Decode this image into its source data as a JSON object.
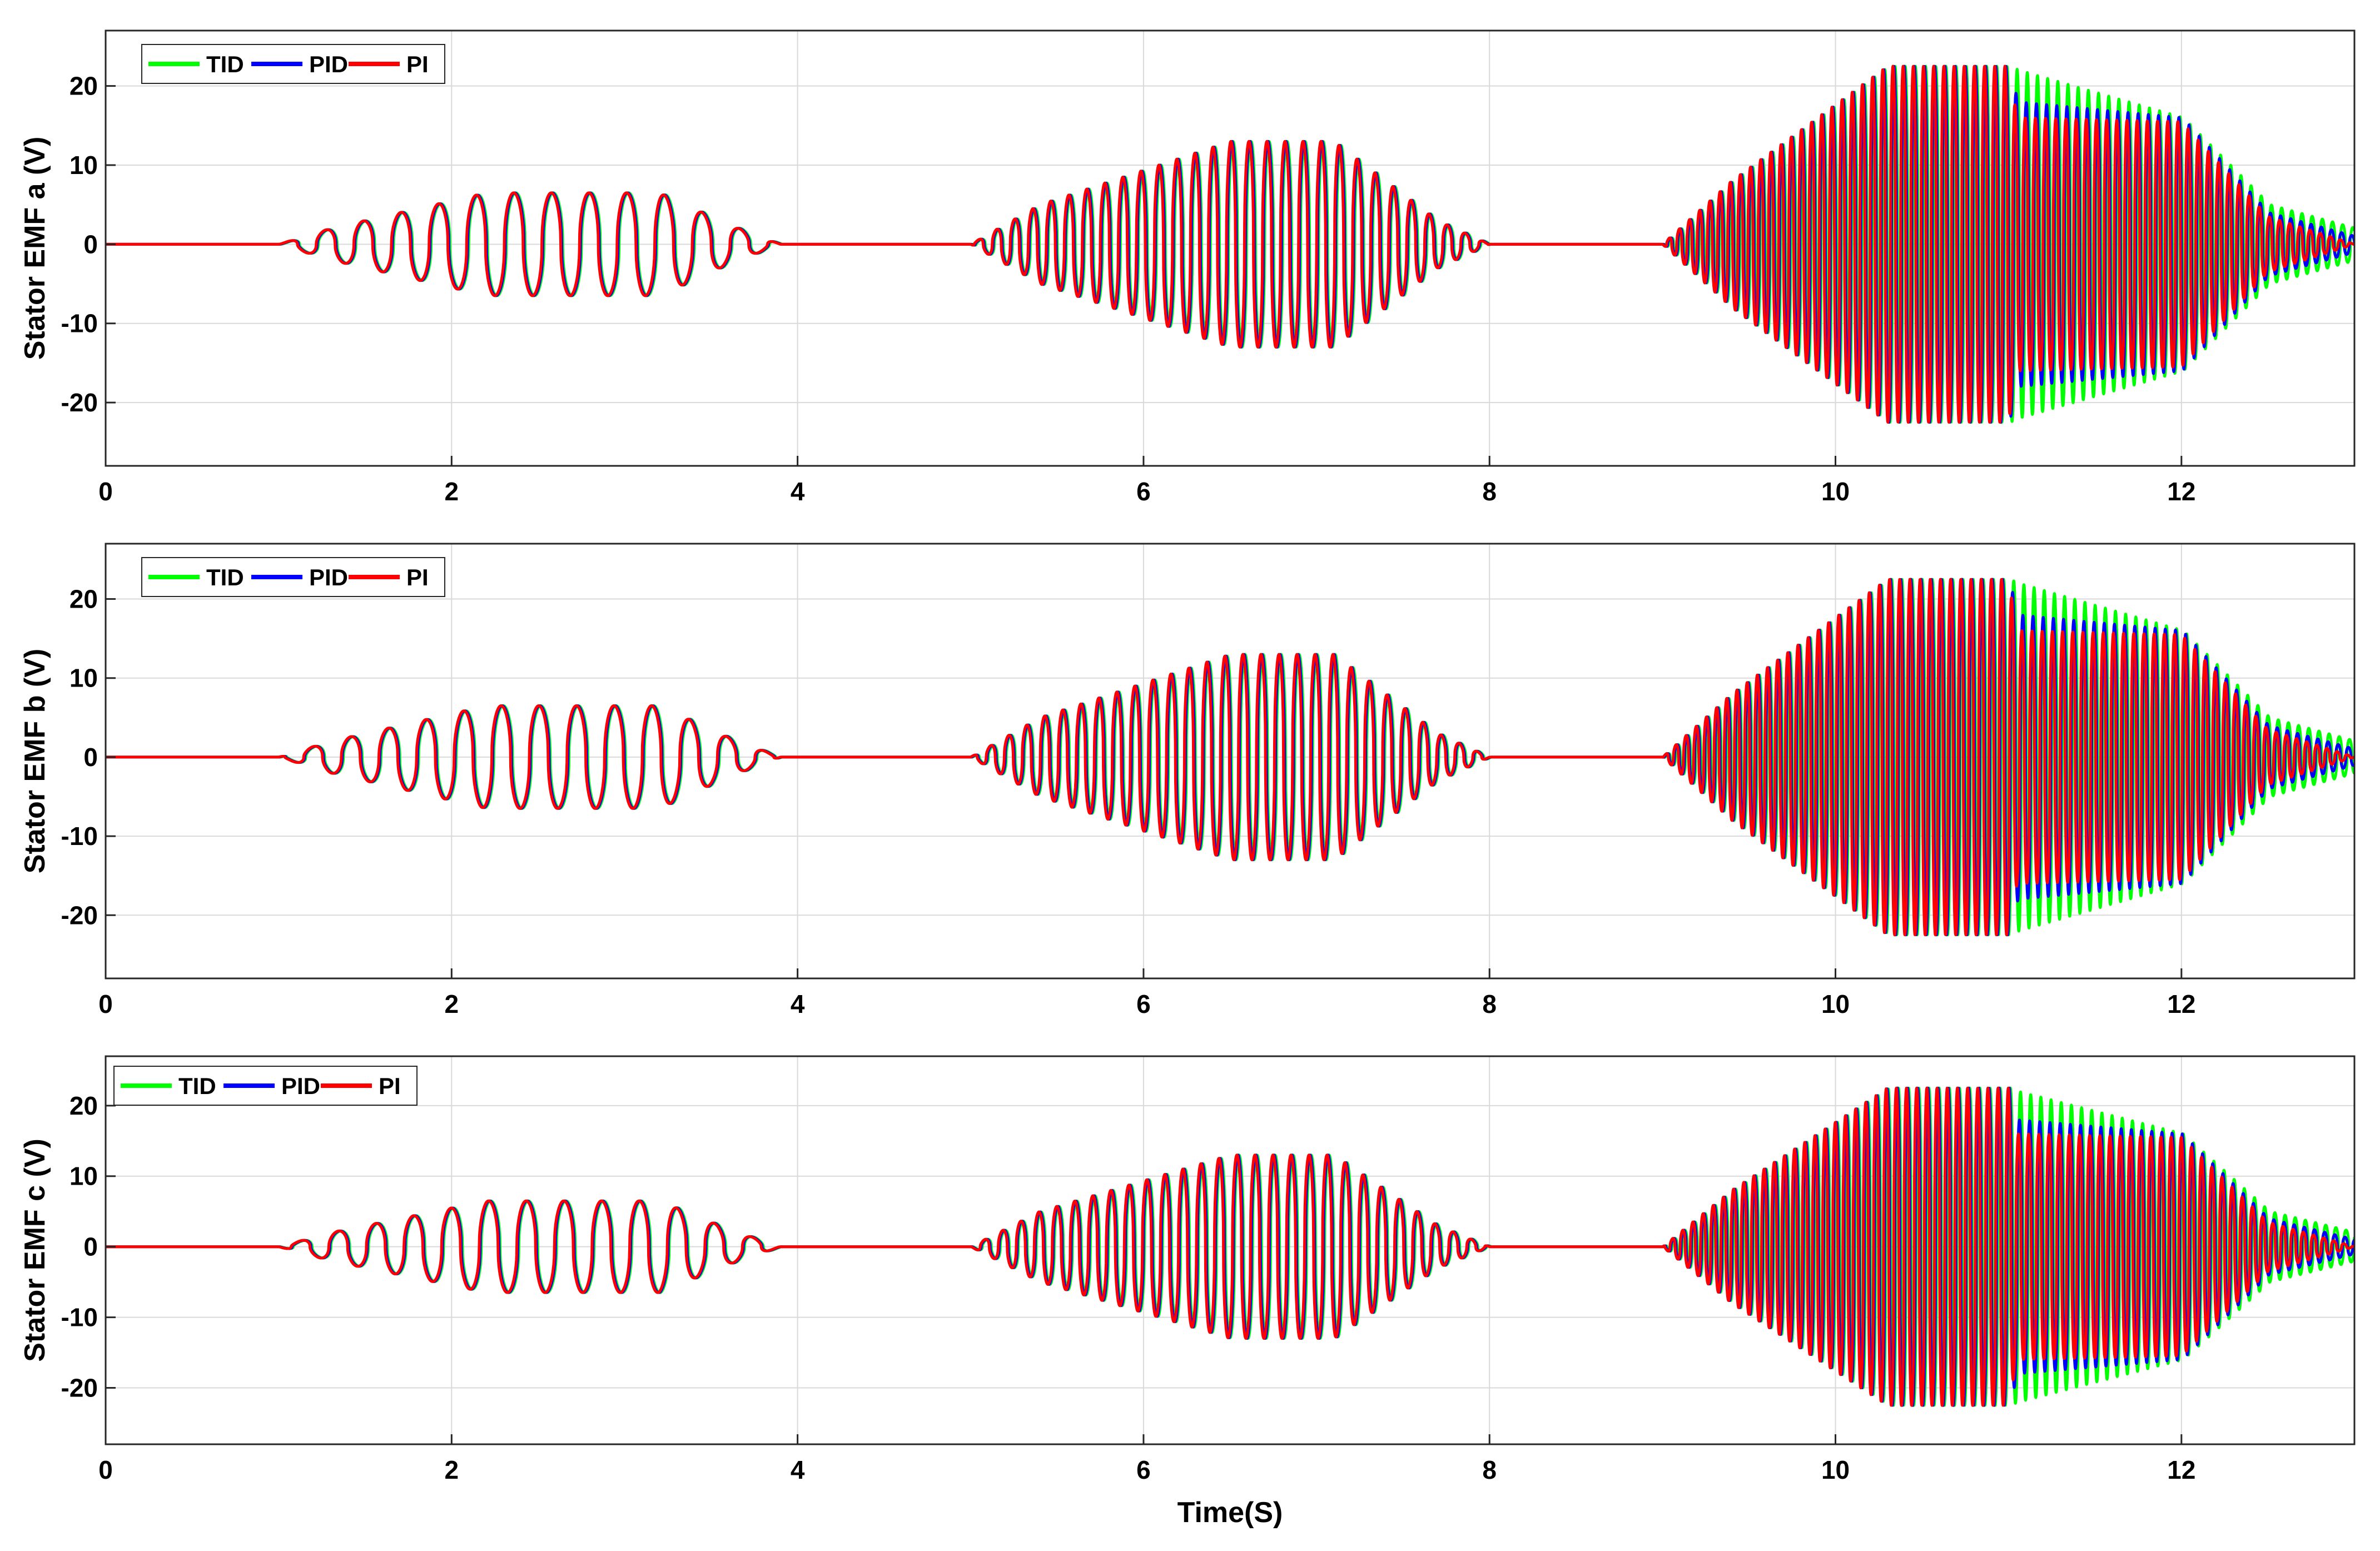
{
  "chart_data": [
    {
      "type": "line",
      "ylabel": "Stator EMF a (V)",
      "xlabel": "",
      "xlim": [
        0,
        13
      ],
      "ylim": [
        -28,
        27
      ],
      "x_ticks": [
        0,
        2,
        4,
        6,
        8,
        10,
        12
      ],
      "y_ticks": [
        -20,
        -10,
        0,
        10,
        20
      ],
      "grid": true,
      "legend_position": "top-left",
      "series": [
        {
          "name": "TID",
          "color": "#00ff00",
          "amplitude_envelope": [
            [
              0,
              0
            ],
            [
              1,
              0
            ],
            [
              1.3,
              2
            ],
            [
              2.2,
              6.5
            ],
            [
              3.2,
              6.5
            ],
            [
              3.6,
              2.5
            ],
            [
              3.9,
              0
            ],
            [
              5,
              0
            ],
            [
              5.4,
              5
            ],
            [
              6.5,
              13
            ],
            [
              7.1,
              13
            ],
            [
              7.7,
              3
            ],
            [
              8,
              0
            ],
            [
              9,
              0
            ],
            [
              9.4,
              8
            ],
            [
              10.3,
              22.5
            ],
            [
              11,
              22.5
            ],
            [
              11.05,
              22
            ],
            [
              12,
              16
            ],
            [
              12.5,
              5
            ],
            [
              13,
              2
            ]
          ]
        },
        {
          "name": "PID",
          "color": "#0000ff",
          "amplitude_envelope": [
            [
              0,
              0
            ],
            [
              1,
              0
            ],
            [
              1.3,
              2
            ],
            [
              2.2,
              6.5
            ],
            [
              3.2,
              6.5
            ],
            [
              3.6,
              2.5
            ],
            [
              3.9,
              0
            ],
            [
              5,
              0
            ],
            [
              5.4,
              5
            ],
            [
              6.5,
              13
            ],
            [
              7.1,
              13
            ],
            [
              7.7,
              3
            ],
            [
              8,
              0
            ],
            [
              9,
              0
            ],
            [
              9.4,
              8
            ],
            [
              10.3,
              22.5
            ],
            [
              11,
              22.5
            ],
            [
              11.05,
              18
            ],
            [
              12,
              16
            ],
            [
              12.5,
              4
            ],
            [
              13,
              1
            ]
          ]
        },
        {
          "name": "PI",
          "color": "#ff0000",
          "amplitude_envelope": [
            [
              0,
              0
            ],
            [
              1,
              0
            ],
            [
              1.3,
              2
            ],
            [
              2.2,
              6.5
            ],
            [
              3.2,
              6.5
            ],
            [
              3.6,
              2.5
            ],
            [
              3.9,
              0
            ],
            [
              5,
              0
            ],
            [
              5.4,
              5
            ],
            [
              6.5,
              13
            ],
            [
              7.1,
              13
            ],
            [
              7.7,
              3
            ],
            [
              8,
              0
            ],
            [
              9,
              0
            ],
            [
              9.4,
              8
            ],
            [
              10.3,
              22.5
            ],
            [
              11,
              22.5
            ],
            [
              11.05,
              16
            ],
            [
              12,
              15.5
            ],
            [
              12.5,
              3.5
            ],
            [
              13,
              0
            ]
          ]
        }
      ]
    },
    {
      "type": "line",
      "ylabel": "Stator EMF b (V)",
      "xlabel": "",
      "xlim": [
        0,
        13
      ],
      "ylim": [
        -28,
        27
      ],
      "x_ticks": [
        0,
        2,
        4,
        6,
        8,
        10,
        12
      ],
      "y_ticks": [
        -20,
        -10,
        0,
        10,
        20
      ],
      "grid": true,
      "legend_position": "top-left",
      "series": [
        {
          "name": "TID",
          "color": "#00ff00",
          "amplitude_envelope": [
            [
              0,
              0
            ],
            [
              1,
              0
            ],
            [
              1.3,
              2
            ],
            [
              2.2,
              6.5
            ],
            [
              3.2,
              6.5
            ],
            [
              3.6,
              2.5
            ],
            [
              3.9,
              0
            ],
            [
              5,
              0
            ],
            [
              5.4,
              5
            ],
            [
              6.5,
              13
            ],
            [
              7.1,
              13
            ],
            [
              7.7,
              3
            ],
            [
              8,
              0
            ],
            [
              9,
              0
            ],
            [
              9.4,
              8
            ],
            [
              10.3,
              22.5
            ],
            [
              11,
              22.5
            ],
            [
              11.05,
              22
            ],
            [
              12,
              16
            ],
            [
              12.5,
              5
            ],
            [
              13,
              2
            ]
          ]
        },
        {
          "name": "PID",
          "color": "#0000ff",
          "amplitude_envelope": [
            [
              0,
              0
            ],
            [
              1,
              0
            ],
            [
              1.3,
              2
            ],
            [
              2.2,
              6.5
            ],
            [
              3.2,
              6.5
            ],
            [
              3.6,
              2.5
            ],
            [
              3.9,
              0
            ],
            [
              5,
              0
            ],
            [
              5.4,
              5
            ],
            [
              6.5,
              13
            ],
            [
              7.1,
              13
            ],
            [
              7.7,
              3
            ],
            [
              8,
              0
            ],
            [
              9,
              0
            ],
            [
              9.4,
              8
            ],
            [
              10.3,
              22.5
            ],
            [
              11,
              22.5
            ],
            [
              11.05,
              18
            ],
            [
              12,
              16
            ],
            [
              12.5,
              4
            ],
            [
              13,
              1
            ]
          ]
        },
        {
          "name": "PI",
          "color": "#ff0000",
          "amplitude_envelope": [
            [
              0,
              0
            ],
            [
              1,
              0
            ],
            [
              1.3,
              2
            ],
            [
              2.2,
              6.5
            ],
            [
              3.2,
              6.5
            ],
            [
              3.6,
              2.5
            ],
            [
              3.9,
              0
            ],
            [
              5,
              0
            ],
            [
              5.4,
              5
            ],
            [
              6.5,
              13
            ],
            [
              7.1,
              13
            ],
            [
              7.7,
              3
            ],
            [
              8,
              0
            ],
            [
              9,
              0
            ],
            [
              9.4,
              8
            ],
            [
              10.3,
              22.5
            ],
            [
              11,
              22.5
            ],
            [
              11.05,
              16
            ],
            [
              12,
              15.5
            ],
            [
              12.5,
              3.5
            ],
            [
              13,
              0
            ]
          ]
        }
      ]
    },
    {
      "type": "line",
      "ylabel": "Stator EMF c (V)",
      "xlabel": "Time(S)",
      "xlim": [
        0,
        13
      ],
      "ylim": [
        -28,
        27
      ],
      "x_ticks": [
        0,
        2,
        4,
        6,
        8,
        10,
        12
      ],
      "y_ticks": [
        -20,
        -10,
        0,
        10,
        20
      ],
      "grid": true,
      "legend_position": "top-left",
      "series": [
        {
          "name": "TID",
          "color": "#00ff00",
          "amplitude_envelope": [
            [
              0,
              0
            ],
            [
              1,
              0
            ],
            [
              1.3,
              2
            ],
            [
              2.2,
              6.5
            ],
            [
              3.2,
              6.5
            ],
            [
              3.6,
              2.5
            ],
            [
              3.9,
              0
            ],
            [
              5,
              0
            ],
            [
              5.4,
              5
            ],
            [
              6.5,
              13
            ],
            [
              7.1,
              13
            ],
            [
              7.7,
              3
            ],
            [
              8,
              0
            ],
            [
              9,
              0
            ],
            [
              9.4,
              8
            ],
            [
              10.3,
              22.5
            ],
            [
              11,
              22.5
            ],
            [
              11.05,
              22
            ],
            [
              12,
              16
            ],
            [
              12.5,
              5
            ],
            [
              13,
              2
            ]
          ]
        },
        {
          "name": "PID",
          "color": "#0000ff",
          "amplitude_envelope": [
            [
              0,
              0
            ],
            [
              1,
              0
            ],
            [
              1.3,
              2
            ],
            [
              2.2,
              6.5
            ],
            [
              3.2,
              6.5
            ],
            [
              3.6,
              2.5
            ],
            [
              3.9,
              0
            ],
            [
              5,
              0
            ],
            [
              5.4,
              5
            ],
            [
              6.5,
              13
            ],
            [
              7.1,
              13
            ],
            [
              7.7,
              3
            ],
            [
              8,
              0
            ],
            [
              9,
              0
            ],
            [
              9.4,
              8
            ],
            [
              10.3,
              22.5
            ],
            [
              11,
              22.5
            ],
            [
              11.05,
              18
            ],
            [
              12,
              16
            ],
            [
              12.5,
              4
            ],
            [
              13,
              1
            ]
          ]
        },
        {
          "name": "PI",
          "color": "#ff0000",
          "amplitude_envelope": [
            [
              0,
              0
            ],
            [
              1,
              0
            ],
            [
              1.3,
              2
            ],
            [
              2.2,
              6.5
            ],
            [
              3.2,
              6.5
            ],
            [
              3.6,
              2.5
            ],
            [
              3.9,
              0
            ],
            [
              5,
              0
            ],
            [
              5.4,
              5
            ],
            [
              6.5,
              13
            ],
            [
              7.1,
              13
            ],
            [
              7.7,
              3
            ],
            [
              8,
              0
            ],
            [
              9,
              0
            ],
            [
              9.4,
              8
            ],
            [
              10.3,
              22.5
            ],
            [
              11,
              22.5
            ],
            [
              11.05,
              16
            ],
            [
              12,
              15.5
            ],
            [
              12.5,
              3.5
            ],
            [
              13,
              0
            ]
          ]
        }
      ]
    }
  ]
}
